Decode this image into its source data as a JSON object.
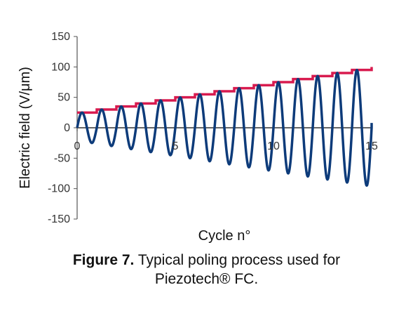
{
  "chart_data": {
    "type": "line",
    "xlabel": "Cycle n°",
    "ylabel": "Electric field (V/μm)",
    "xlim": [
      0,
      15
    ],
    "ylim": [
      -150,
      150
    ],
    "x_ticks": [
      "0",
      "5",
      "10",
      "15"
    ],
    "y_ticks": [
      "150",
      "100",
      "50",
      "0",
      "-50",
      "-100",
      "-150"
    ],
    "grid": false,
    "series": [
      {
        "style": "step",
        "color": "#d81b4f",
        "x": [
          0,
          1,
          2,
          3,
          4,
          5,
          6,
          7,
          8,
          9,
          10,
          11,
          12,
          13,
          14,
          15
        ],
        "y": [
          25,
          30,
          35,
          40,
          45,
          50,
          55,
          60,
          65,
          70,
          75,
          80,
          85,
          90,
          95,
          100
        ]
      },
      {
        "style": "oscillation",
        "color": "#0d3b7a",
        "x": [
          0,
          1,
          2,
          3,
          4,
          5,
          6,
          7,
          8,
          9,
          10,
          11,
          12,
          13,
          14,
          15
        ],
        "peak": [
          25,
          30,
          35,
          40,
          45,
          50,
          55,
          60,
          65,
          70,
          75,
          80,
          85,
          90,
          95,
          100
        ],
        "trough": [
          -25,
          -30,
          -35,
          -40,
          -45,
          -50,
          -55,
          -60,
          -65,
          -70,
          -75,
          -80,
          -85,
          -90,
          -95,
          -100
        ]
      }
    ]
  },
  "caption": {
    "label": "Figure 7.",
    "text_line1": " Typical poling process used for",
    "text_line2": "Piezotech® FC."
  }
}
